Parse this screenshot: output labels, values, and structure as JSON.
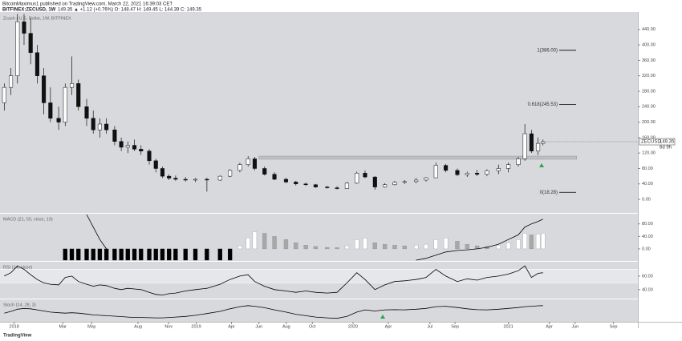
{
  "header": {
    "author": "BitcoinMaximus1 published on TradingView.com, March 22, 2021 16:39:03 CET",
    "symbol": "BITFINEX:ZECUSD, 1W",
    "quote": "149.35 ▲ +1.12 (+0.76%) O: 148.47 H: 149.45 L: 144.39 C: 149.35",
    "brand": "TradingView"
  },
  "chart_data": [
    {
      "type": "candlestick",
      "title": "Zcash / U.S. Dollar, 1W, BITFINEX",
      "x": [
        2017.94,
        2017.98,
        2018.02,
        2018.06,
        2018.1,
        2018.14,
        2018.18,
        2018.22,
        2018.27,
        2018.31,
        2018.35,
        2018.39,
        2018.44,
        2018.48,
        2018.52,
        2018.56,
        2018.61,
        2018.65,
        2018.69,
        2018.73,
        2018.77,
        2018.82,
        2018.86,
        2018.9,
        2018.94,
        2018.98,
        2019.04,
        2019.1,
        2019.17,
        2019.25,
        2019.31,
        2019.37,
        2019.42,
        2019.46,
        2019.52,
        2019.58,
        2019.65,
        2019.71,
        2019.77,
        2019.83,
        2019.9,
        2019.96,
        2020.02,
        2020.08,
        2020.13,
        2020.19,
        2020.25,
        2020.31,
        2020.37,
        2020.44,
        2020.5,
        2020.56,
        2020.62,
        2020.69,
        2020.75,
        2020.81,
        2020.87,
        2020.94,
        2021.0,
        2021.06,
        2021.1,
        2021.14,
        2021.18,
        2021.21
      ],
      "open": [
        250,
        290,
        320,
        460,
        430,
        380,
        320,
        250,
        210,
        200,
        290,
        300,
        240,
        210,
        180,
        195,
        180,
        150,
        135,
        140,
        130,
        125,
        100,
        80,
        60,
        55,
        52,
        50,
        52,
        50,
        60,
        75,
        90,
        105,
        80,
        65,
        52,
        45,
        40,
        38,
        32,
        30,
        28,
        42,
        68,
        58,
        32,
        38,
        44,
        46,
        50,
        56,
        88,
        75,
        64,
        68,
        65,
        74,
        80,
        90,
        105,
        170,
        125,
        145
      ],
      "high": [
        300,
        340,
        480,
        480,
        470,
        400,
        340,
        290,
        240,
        300,
        370,
        310,
        260,
        230,
        210,
        210,
        190,
        160,
        150,
        155,
        140,
        130,
        105,
        85,
        65,
        62,
        58,
        55,
        56,
        62,
        78,
        95,
        112,
        110,
        85,
        70,
        56,
        48,
        44,
        40,
        35,
        34,
        45,
        72,
        75,
        60,
        42,
        48,
        50,
        55,
        58,
        95,
        92,
        80,
        72,
        76,
        78,
        90,
        95,
        110,
        195,
        180,
        160,
        155
      ],
      "low": [
        230,
        270,
        300,
        400,
        350,
        300,
        220,
        200,
        180,
        190,
        270,
        230,
        190,
        170,
        160,
        170,
        140,
        125,
        120,
        125,
        115,
        90,
        70,
        55,
        50,
        48,
        46,
        45,
        20,
        48,
        58,
        70,
        85,
        75,
        62,
        50,
        42,
        36,
        35,
        30,
        28,
        26,
        27,
        40,
        55,
        25,
        30,
        36,
        40,
        42,
        46,
        55,
        70,
        60,
        58,
        60,
        60,
        65,
        70,
        85,
        100,
        120,
        115,
        140
      ],
      "close": [
        290,
        320,
        460,
        430,
        380,
        320,
        250,
        210,
        200,
        290,
        300,
        240,
        210,
        180,
        195,
        180,
        150,
        135,
        140,
        130,
        125,
        100,
        80,
        60,
        55,
        52,
        50,
        52,
        50,
        60,
        75,
        90,
        105,
        80,
        65,
        52,
        45,
        40,
        38,
        32,
        30,
        28,
        42,
        68,
        58,
        32,
        38,
        44,
        46,
        50,
        56,
        88,
        75,
        64,
        68,
        65,
        74,
        80,
        90,
        105,
        170,
        125,
        145,
        149.35
      ],
      "xlim": [
        2017.914,
        2021.786
      ],
      "xticks": [
        2018,
        {
          "value": 2018.295,
          "label": "Mar"
        },
        {
          "value": 2018.471,
          "label": "May"
        },
        {
          "value": 2018.752,
          "label": "Aug"
        },
        {
          "value": 2018.938,
          "label": "Nov"
        },
        {
          "value": 2019.105,
          "label": "2019"
        },
        {
          "value": 2019.319,
          "label": "Apr"
        },
        {
          "value": 2019.486,
          "label": "Jun"
        },
        {
          "value": 2019.652,
          "label": "Aug"
        },
        {
          "value": 2019.81,
          "label": "Oct"
        },
        {
          "value": 2020.057,
          "label": "2020"
        },
        {
          "value": 2020.271,
          "label": "Apr"
        },
        {
          "value": 2020.524,
          "label": "Jul"
        },
        {
          "value": 2020.676,
          "label": "Sep"
        },
        2021,
        {
          "value": 2021.248,
          "label": "Apr"
        },
        {
          "value": 2021.405,
          "label": "Jun"
        },
        {
          "value": 2021.638,
          "label": "Sep"
        }
      ],
      "ylim": [
        -33,
        481
      ],
      "yticks": [
        {
          "value": 0,
          "label": "0.00"
        },
        {
          "value": 40,
          "label": "40.00"
        },
        {
          "value": 80,
          "label": "80.00"
        },
        {
          "value": 120,
          "label": "120.00"
        },
        {
          "value": 160,
          "label": "160.00"
        },
        {
          "value": 200,
          "label": "200.00"
        },
        {
          "value": 240,
          "label": "240.00"
        },
        {
          "value": 280,
          "label": "280.00"
        },
        {
          "value": 320,
          "label": "320.00"
        },
        {
          "value": 360,
          "label": "360.00"
        },
        {
          "value": 400,
          "label": "400.00"
        },
        {
          "value": 440,
          "label": "440.00"
        }
      ],
      "fib_levels": [
        {
          "label": "1(386.00)",
          "value": 386
        },
        {
          "label": "0.618(245.53)",
          "value": 245.53
        },
        {
          "label": "0(18.28)",
          "value": 18.28
        }
      ],
      "zone": {
        "from": 2019.486,
        "to": 2021.414,
        "low": 104,
        "high": 112
      },
      "last": {
        "label": "ZECUSD",
        "value": 149.35,
        "countdown": "6d 9h"
      }
    },
    {
      "type": "macd",
      "title": "MACD (21, 50, close, 10)",
      "histogram": [
        null,
        null,
        null,
        null,
        null,
        null,
        null,
        null,
        null,
        -36,
        -36,
        -36,
        -36,
        -36,
        -36,
        -36,
        -36,
        -36,
        -36,
        -36,
        -36,
        -36,
        -36,
        -36,
        -36,
        -36,
        -36,
        -36,
        -36,
        -36,
        -36,
        10,
        35,
        55,
        50,
        40,
        30,
        20,
        12,
        8,
        5,
        4,
        10,
        30,
        35,
        20,
        15,
        12,
        10,
        12,
        15,
        30,
        35,
        25,
        15,
        10,
        8,
        12,
        20,
        30,
        50,
        45,
        48,
        50
      ],
      "macd": [
        null,
        null,
        null,
        null,
        null,
        null,
        null,
        null,
        null,
        null,
        null,
        null,
        110,
        70,
        30,
        0,
        null,
        null,
        null,
        null,
        null,
        null,
        null,
        null,
        null,
        null,
        null,
        null,
        null,
        null,
        null,
        null,
        null,
        null,
        null,
        null,
        null,
        null,
        null,
        null,
        null,
        null,
        null,
        null,
        null,
        null,
        null,
        null,
        null,
        -36,
        -30,
        -20,
        -10,
        -5,
        -3,
        0,
        5,
        15,
        30,
        45,
        70,
        80,
        88,
        95
      ],
      "ylim": [
        -36,
        110
      ],
      "yticks": [
        {
          "value": 0,
          "label": "0.00"
        },
        {
          "value": 40,
          "label": "40.00"
        },
        {
          "value": 80,
          "label": "80.00"
        }
      ]
    },
    {
      "type": "line",
      "title": "RSI (14, close)",
      "values": [
        60,
        65,
        75,
        70,
        62,
        55,
        50,
        48,
        47,
        58,
        60,
        52,
        48,
        45,
        47,
        46,
        42,
        40,
        42,
        41,
        40,
        36,
        33,
        32,
        34,
        35,
        38,
        40,
        42,
        48,
        55,
        60,
        62,
        52,
        45,
        40,
        38,
        36,
        38,
        36,
        35,
        36,
        50,
        65,
        55,
        40,
        47,
        52,
        53,
        55,
        58,
        70,
        60,
        52,
        56,
        54,
        58,
        60,
        63,
        68,
        75,
        58,
        64,
        65
      ],
      "ylim": [
        28,
        80
      ],
      "yticks": [
        {
          "value": 40,
          "label": "40.00"
        },
        {
          "value": 60,
          "label": "60.00"
        }
      ],
      "levels": [
        50,
        70
      ]
    },
    {
      "type": "line",
      "title": "Stoch (14, 28, 3)",
      "values": [
        40,
        48,
        58,
        62,
        60,
        55,
        50,
        45,
        42,
        40,
        42,
        40,
        36,
        32,
        30,
        28,
        26,
        24,
        22,
        20,
        20,
        19,
        18,
        18,
        20,
        22,
        25,
        30,
        38,
        48,
        60,
        70,
        75,
        72,
        65,
        55,
        45,
        35,
        28,
        22,
        18,
        16,
        25,
        45,
        55,
        50,
        55,
        56,
        55,
        58,
        62,
        70,
        72,
        66,
        60,
        56,
        55,
        58,
        62,
        66,
        70,
        72,
        74,
        75
      ],
      "ylim": [
        0,
        100
      ]
    }
  ]
}
